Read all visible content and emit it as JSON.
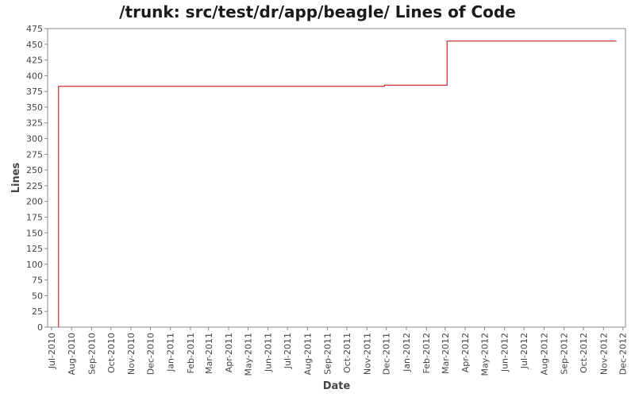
{
  "chart_data": {
    "type": "line",
    "title": "/trunk: src/test/dr/app/beagle/ Lines of Code",
    "xlabel": "Date",
    "ylabel": "Lines",
    "ylim": [
      0,
      475
    ],
    "xlim": [
      "2010-06-25",
      "2012-12-05"
    ],
    "grid": false,
    "legend": "none",
    "y_ticks": [
      0,
      25,
      50,
      75,
      100,
      125,
      150,
      175,
      200,
      225,
      250,
      275,
      300,
      325,
      350,
      375,
      400,
      425,
      450,
      475
    ],
    "x_ticks": [
      {
        "date": "2010-07-01",
        "label": "Jul-2010"
      },
      {
        "date": "2010-08-01",
        "label": "Aug-2010"
      },
      {
        "date": "2010-09-01",
        "label": "Sep-2010"
      },
      {
        "date": "2010-10-01",
        "label": "Oct-2010"
      },
      {
        "date": "2010-11-01",
        "label": "Nov-2010"
      },
      {
        "date": "2010-12-01",
        "label": "Dec-2010"
      },
      {
        "date": "2011-01-01",
        "label": "Jan-2011"
      },
      {
        "date": "2011-02-01",
        "label": "Feb-2011"
      },
      {
        "date": "2011-03-01",
        "label": "Mar-2011"
      },
      {
        "date": "2011-04-01",
        "label": "Apr-2011"
      },
      {
        "date": "2011-05-01",
        "label": "May-2011"
      },
      {
        "date": "2011-06-01",
        "label": "Jun-2011"
      },
      {
        "date": "2011-07-01",
        "label": "Jul-2011"
      },
      {
        "date": "2011-08-01",
        "label": "Aug-2011"
      },
      {
        "date": "2011-09-01",
        "label": "Sep-2011"
      },
      {
        "date": "2011-10-01",
        "label": "Oct-2011"
      },
      {
        "date": "2011-11-01",
        "label": "Nov-2011"
      },
      {
        "date": "2011-12-01",
        "label": "Dec-2011"
      },
      {
        "date": "2012-01-01",
        "label": "Jan-2012"
      },
      {
        "date": "2012-02-01",
        "label": "Feb-2012"
      },
      {
        "date": "2012-03-01",
        "label": "Mar-2012"
      },
      {
        "date": "2012-04-01",
        "label": "Apr-2012"
      },
      {
        "date": "2012-05-01",
        "label": "May-2012"
      },
      {
        "date": "2012-06-01",
        "label": "Jun-2012"
      },
      {
        "date": "2012-07-01",
        "label": "Jul-2012"
      },
      {
        "date": "2012-08-01",
        "label": "Aug-2012"
      },
      {
        "date": "2012-09-01",
        "label": "Sep-2012"
      },
      {
        "date": "2012-10-01",
        "label": "Oct-2012"
      },
      {
        "date": "2012-11-01",
        "label": "Nov-2012"
      },
      {
        "date": "2012-12-01",
        "label": "Dec-2012"
      }
    ],
    "series": [
      {
        "color": "#c00000",
        "step": true,
        "points": [
          {
            "x": "2010-07-12",
            "y": 0
          },
          {
            "x": "2010-07-12",
            "y": 383
          },
          {
            "x": "2011-11-28",
            "y": 383
          },
          {
            "x": "2011-11-28",
            "y": 385
          },
          {
            "x": "2012-03-04",
            "y": 385
          },
          {
            "x": "2012-03-04",
            "y": 455
          },
          {
            "x": "2012-11-21",
            "y": 455
          }
        ]
      }
    ]
  }
}
